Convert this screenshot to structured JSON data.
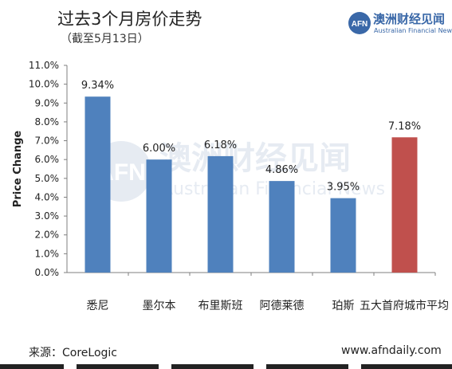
{
  "header": {
    "title": "过去3个月房价走势",
    "subtitle": "（截至5月13日）"
  },
  "logo": {
    "name_cn": "澳洲财经见闻",
    "name_en": "Australian Financial News",
    "mark": "AFN",
    "color": "#3a68a8"
  },
  "watermark": {
    "mark": "AFN",
    "name_cn": "澳洲财经见闻",
    "name_en": "Australian Financial News"
  },
  "chart_data": {
    "type": "bar",
    "categories": [
      "悉尼",
      "墨尔本",
      "布里斯班",
      "阿德莱德",
      "珀斯",
      "五大首府城市平均"
    ],
    "values": [
      9.34,
      6.0,
      6.18,
      4.86,
      3.95,
      7.18
    ],
    "data_labels": [
      "9.34%",
      "6.00%",
      "6.18%",
      "4.86%",
      "3.95%",
      "7.18%"
    ],
    "bar_colors": [
      "#4f81bd",
      "#4f81bd",
      "#4f81bd",
      "#4f81bd",
      "#4f81bd",
      "#c0504d"
    ],
    "ylabel": "Price Change",
    "ylim": [
      0,
      11
    ],
    "yticks": [
      0,
      1,
      2,
      3,
      4,
      5,
      6,
      7,
      8,
      9,
      10,
      11
    ],
    "ytick_labels": [
      "0.0%",
      "1.0%",
      "2.0%",
      "3.0%",
      "4.0%",
      "5.0%",
      "6.0%",
      "7.0%",
      "8.0%",
      "9.0%",
      "10.0%",
      "11.0%"
    ],
    "grid": false,
    "legend": "none"
  },
  "footer": {
    "source": "来源：CoreLogic",
    "url": "www.afndaily.com"
  }
}
